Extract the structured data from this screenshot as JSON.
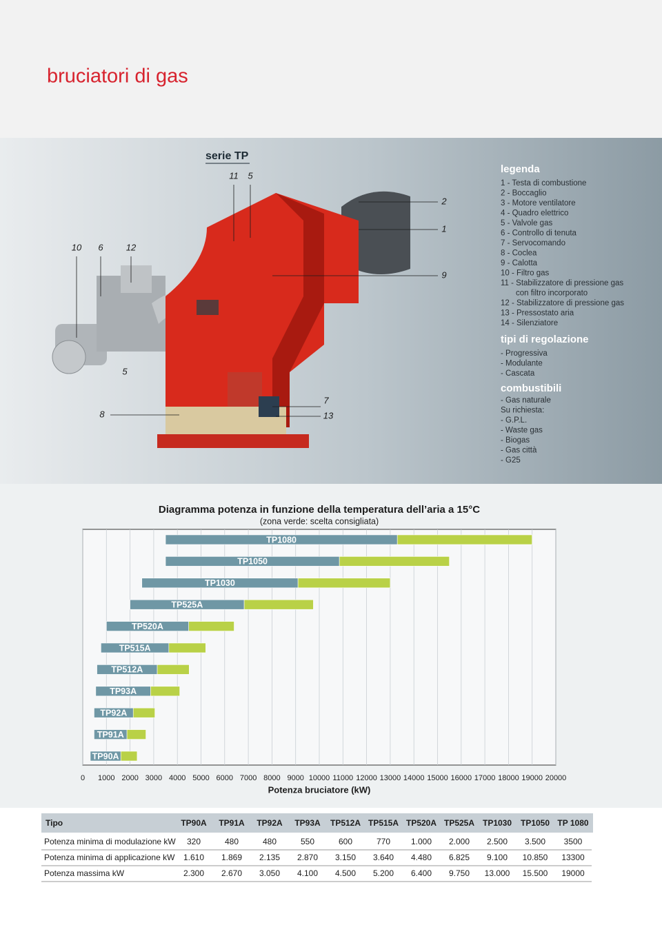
{
  "header": {
    "title": "bruciatori di gas"
  },
  "product": {
    "series": "serie TP",
    "callouts": [
      "11",
      "5",
      "10",
      "6",
      "12",
      "5",
      "8",
      "7",
      "13",
      "2",
      "1",
      "9"
    ],
    "legend": {
      "title": "legenda",
      "lines": [
        "1 - Testa di combustione",
        "2 - Boccaglio",
        "3 - Motore ventilatore",
        "4 - Quadro elettrico",
        "5 - Valvole gas",
        "6 - Controllo di tenuta",
        "7 - Servocomando",
        "8 - Coclea",
        "9 - Calotta",
        "10 - Filtro gas",
        "11 - Stabilizzatore di pressione gas",
        "con filtro incorporato",
        "12 - Stabilizzatore di pressione gas",
        "13 - Pressostato aria",
        "14 - Silenziatore"
      ]
    },
    "regulation": {
      "title": "tipi di regolazione",
      "lines": [
        "- Progressiva",
        "- Modulante",
        "- Cascata"
      ]
    },
    "fuels": {
      "title": "combustibili",
      "lines": [
        "- Gas naturale",
        "Su richiesta:",
        "- G.P.L.",
        "- Waste gas",
        "- Biogas",
        "- Gas città",
        "- G25"
      ]
    }
  },
  "chart_data": {
    "type": "range-bar",
    "title": "Diagramma potenza in funzione della temperatura dell’aria a 15°C",
    "subtitle": "(zona verde: scelta consigliata)",
    "x_label": "Potenza bruciatore (kW)",
    "categories": [
      "TP1080",
      "TP1050",
      "TP1030",
      "TP525A",
      "TP520A",
      "TP515A",
      "TP512A",
      "TP93A",
      "TP92A",
      "TP91A",
      "TP90A"
    ],
    "ranges": [
      [
        3500,
        13300,
        19000
      ],
      [
        3500,
        10850,
        15500
      ],
      [
        2500,
        9100,
        13000
      ],
      [
        2000,
        6825,
        9750
      ],
      [
        1000,
        4480,
        6400
      ],
      [
        770,
        3640,
        5200
      ],
      [
        600,
        3150,
        4500
      ],
      [
        550,
        2870,
        4100
      ],
      [
        480,
        2135,
        3050
      ],
      [
        480,
        1869,
        2670
      ],
      [
        320,
        1610,
        2300
      ]
    ],
    "colors": [
      "#6f97a5",
      "#b9d147"
    ],
    "xlim": [
      0,
      20000
    ],
    "xticks": [
      0,
      1000,
      2000,
      3000,
      4000,
      5000,
      6000,
      7000,
      8000,
      9000,
      10000,
      11000,
      12000,
      13000,
      14000,
      15000,
      16000,
      17000,
      18000,
      19000,
      20000
    ],
    "grid": true
  },
  "table": {
    "header": [
      "Tipo",
      "TP90A",
      "TP91A",
      "TP92A",
      "TP93A",
      "TP512A",
      "TP515A",
      "TP520A",
      "TP525A",
      "TP1030",
      "TP1050",
      "TP 1080"
    ],
    "rows": [
      [
        "Potenza minima di modulazione kW",
        "320",
        "480",
        "480",
        "550",
        "600",
        "770",
        "1.000",
        "2.000",
        "2.500",
        "3.500",
        "3500"
      ],
      [
        "Potenza minima di applicazione kW",
        "1.610",
        "1.869",
        "2.135",
        "2.870",
        "3.150",
        "3.640",
        "4.480",
        "6.825",
        "9.100",
        "10.850",
        "13300"
      ],
      [
        "Potenza massima kW",
        "2.300",
        "2.670",
        "3.050",
        "4.100",
        "4.500",
        "5.200",
        "6.400",
        "9.750",
        "13.000",
        "15.500",
        "19000"
      ]
    ]
  }
}
